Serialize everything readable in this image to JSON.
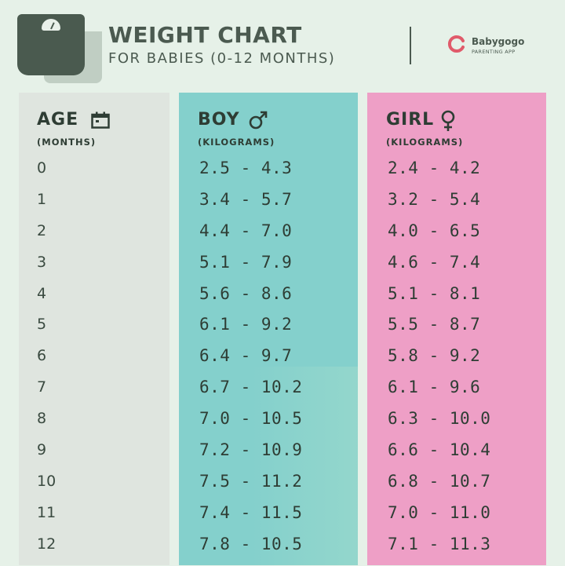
{
  "header": {
    "title": "WEIGHT CHART",
    "subtitle": "FOR BABIES (0-12 MONTHS)",
    "brand_name": "Babygogo",
    "brand_tagline": "PARENTING APP",
    "icon": "weighing-scale-icon"
  },
  "columns": {
    "age": {
      "heading": "AGE",
      "subheading": "(MONTHS)",
      "icon": "calendar-icon"
    },
    "boy": {
      "heading": "BOY",
      "subheading": "(KILOGRAMS)",
      "icon": "male-symbol-icon"
    },
    "girl": {
      "heading": "GIRL",
      "subheading": "(KILOGRAMS)",
      "icon": "female-symbol-icon"
    }
  },
  "rows": [
    {
      "age": "0",
      "boy": "2.5 - 4.3",
      "girl": "2.4 - 4.2"
    },
    {
      "age": "1",
      "boy": "3.4 - 5.7",
      "girl": "3.2 - 5.4"
    },
    {
      "age": "2",
      "boy": "4.4 - 7.0",
      "girl": "4.0 - 6.5"
    },
    {
      "age": "3",
      "boy": "5.1 - 7.9",
      "girl": "4.6 - 7.4"
    },
    {
      "age": "4",
      "boy": "5.6 - 8.6",
      "girl": "5.1 - 8.1"
    },
    {
      "age": "5",
      "boy": "6.1 - 9.2",
      "girl": "5.5 - 8.7"
    },
    {
      "age": "6",
      "boy": "6.4 - 9.7",
      "girl": "5.8 - 9.2"
    },
    {
      "age": "7",
      "boy": "6.7 - 10.2",
      "girl": "6.1 - 9.6"
    },
    {
      "age": "8",
      "boy": "7.0 - 10.5",
      "girl": "6.3 - 10.0"
    },
    {
      "age": "9",
      "boy": "7.2 - 10.9",
      "girl": "6.6 - 10.4"
    },
    {
      "age": "10",
      "boy": "7.5 - 11.2",
      "girl": "6.8 - 10.7"
    },
    {
      "age": "11",
      "boy": "7.4 - 11.5",
      "girl": "7.0 - 11.0"
    },
    {
      "age": "12",
      "boy": "7.8 - 10.5",
      "girl": "7.1 - 11.3"
    }
  ],
  "colors": {
    "background": "#e6f1e8",
    "age_column": "#dfe5df",
    "boy_column": "#84d0cc",
    "girl_column": "#ee9fc6",
    "text": "#2e3d34",
    "brand_accent": "#e05a6a"
  }
}
